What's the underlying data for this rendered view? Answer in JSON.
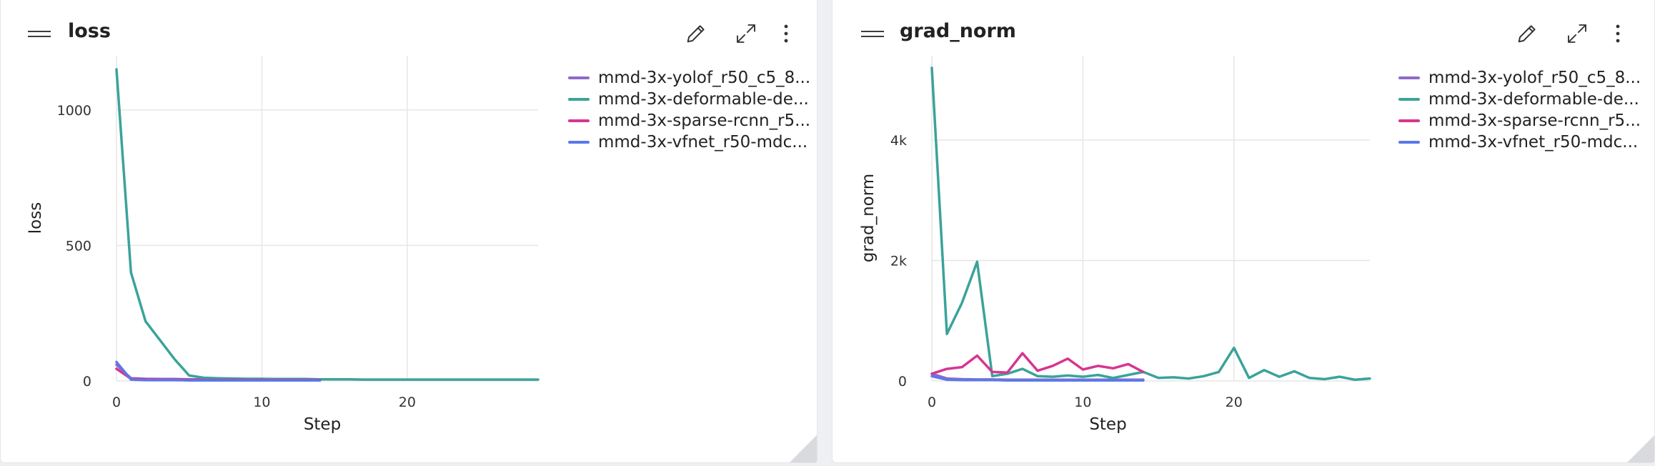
{
  "panels": [
    {
      "title": "loss",
      "legend": [
        {
          "label": "mmd-3x-yolof_r50_c5_8...",
          "color": "#8e6bc7"
        },
        {
          "label": "mmd-3x-deformable-de...",
          "color": "#3aa39a"
        },
        {
          "label": "mmd-3x-sparse-rcnn_r5...",
          "color": "#d63591"
        },
        {
          "label": "mmd-3x-vfnet_r50-mdc...",
          "color": "#5b78e8"
        }
      ],
      "chart_data": {
        "type": "line",
        "title": "loss",
        "xlabel": "Step",
        "ylabel": "loss",
        "xlim": [
          0,
          29
        ],
        "ylim": [
          0,
          1200
        ],
        "xticks": [
          0,
          10,
          20
        ],
        "yticks": [
          0,
          500,
          1000
        ],
        "ytick_labels": [
          "0",
          "500",
          "1000"
        ],
        "grid": true,
        "legend_position": "right",
        "series": [
          {
            "name": "mmd-3x-yolof_r50_c5_8...",
            "color": "#8e6bc7",
            "x": [
              0,
              1,
              2,
              3,
              4,
              5,
              6,
              7,
              8,
              9,
              10,
              11,
              12,
              13,
              14
            ],
            "y": [
              60,
              10,
              8,
              7,
              7,
              6,
              6,
              6,
              5,
              5,
              5,
              5,
              5,
              5,
              5
            ]
          },
          {
            "name": "mmd-3x-deformable-de...",
            "color": "#3aa39a",
            "x": [
              0,
              1,
              2,
              3,
              4,
              5,
              6,
              7,
              8,
              9,
              10,
              11,
              12,
              13,
              14,
              15,
              16,
              17,
              18,
              19,
              20,
              21,
              22,
              23,
              24,
              25,
              26,
              27,
              28,
              29
            ],
            "y": [
              1150,
              400,
              220,
              150,
              80,
              20,
              12,
              10,
              9,
              8,
              8,
              7,
              7,
              7,
              6,
              6,
              6,
              5,
              5,
              5,
              5,
              5,
              5,
              5,
              5,
              5,
              5,
              5,
              5,
              5
            ]
          },
          {
            "name": "mmd-3x-sparse-rcnn_r5...",
            "color": "#d63591",
            "x": [
              0,
              1,
              2,
              3,
              4,
              5,
              6,
              7,
              8,
              9,
              10,
              11,
              12,
              13,
              14
            ],
            "y": [
              45,
              8,
              6,
              5,
              5,
              5,
              4,
              4,
              4,
              4,
              4,
              4,
              4,
              4,
              4
            ]
          },
          {
            "name": "mmd-3x-vfnet_r50-mdc...",
            "color": "#5b78e8",
            "x": [
              0,
              1,
              2,
              3,
              4,
              5,
              6,
              7,
              8,
              9,
              10,
              11,
              12,
              13,
              14
            ],
            "y": [
              70,
              5,
              3,
              3,
              3,
              2,
              2,
              2,
              2,
              2,
              2,
              2,
              2,
              2,
              2
            ]
          }
        ]
      }
    },
    {
      "title": "grad_norm",
      "legend": [
        {
          "label": "mmd-3x-yolof_r50_c5_8...",
          "color": "#8e6bc7"
        },
        {
          "label": "mmd-3x-deformable-de...",
          "color": "#3aa39a"
        },
        {
          "label": "mmd-3x-sparse-rcnn_r5...",
          "color": "#d63591"
        },
        {
          "label": "mmd-3x-vfnet_r50-mdc...",
          "color": "#5b78e8"
        }
      ],
      "chart_data": {
        "type": "line",
        "title": "grad_norm",
        "xlabel": "Step",
        "ylabel": "grad_norm",
        "xlim": [
          0,
          29
        ],
        "ylim": [
          0,
          5400
        ],
        "xticks": [
          0,
          10,
          20
        ],
        "yticks": [
          0,
          2000,
          4000
        ],
        "ytick_labels": [
          "0",
          "2k",
          "4k"
        ],
        "grid": true,
        "legend_position": "right",
        "series": [
          {
            "name": "mmd-3x-yolof_r50_c5_8...",
            "color": "#8e6bc7",
            "x": [
              0,
              1,
              2,
              3,
              4,
              5,
              6,
              7,
              8,
              9,
              10,
              11,
              12,
              13,
              14
            ],
            "y": [
              120,
              40,
              30,
              25,
              25,
              20,
              20,
              20,
              20,
              20,
              20,
              20,
              20,
              20,
              20
            ]
          },
          {
            "name": "mmd-3x-deformable-de...",
            "color": "#3aa39a",
            "x": [
              0,
              1,
              2,
              3,
              4,
              5,
              6,
              7,
              8,
              9,
              10,
              11,
              12,
              13,
              14,
              15,
              16,
              17,
              18,
              19,
              20,
              21,
              22,
              23,
              24,
              25,
              26,
              27,
              28,
              29
            ],
            "y": [
              5200,
              780,
              1300,
              1980,
              80,
              120,
              200,
              80,
              70,
              90,
              70,
              100,
              50,
              100,
              150,
              50,
              60,
              40,
              80,
              150,
              550,
              50,
              180,
              70,
              160,
              50,
              30,
              70,
              20,
              40
            ]
          },
          {
            "name": "mmd-3x-sparse-rcnn_r5...",
            "color": "#d63591",
            "x": [
              0,
              1,
              2,
              3,
              4,
              5,
              6,
              7,
              8,
              9,
              10,
              11,
              12,
              13,
              14
            ],
            "y": [
              120,
              200,
              230,
              420,
              150,
              140,
              460,
              170,
              250,
              370,
              190,
              250,
              210,
              280,
              150
            ]
          },
          {
            "name": "mmd-3x-vfnet_r50-mdc...",
            "color": "#5b78e8",
            "x": [
              0,
              1,
              2,
              3,
              4,
              5,
              6,
              7,
              8,
              9,
              10,
              11,
              12,
              13,
              14
            ],
            "y": [
              80,
              20,
              15,
              15,
              15,
              10,
              10,
              10,
              10,
              10,
              10,
              10,
              10,
              10,
              10
            ]
          }
        ]
      }
    }
  ]
}
